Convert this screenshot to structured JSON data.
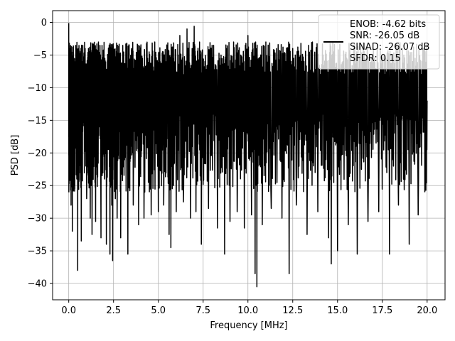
{
  "chart_data": {
    "type": "line",
    "xlabel": "Frequency [MHz]",
    "ylabel": "PSD [dB]",
    "xlim": [
      -0.9,
      21.0
    ],
    "ylim": [
      -42.5,
      1.8
    ],
    "xticks": [
      0.0,
      2.5,
      5.0,
      7.5,
      10.0,
      12.5,
      15.0,
      17.5,
      20.0
    ],
    "xtick_labels": [
      "0.0",
      "2.5",
      "5.0",
      "7.5",
      "10.0",
      "12.5",
      "15.0",
      "17.5",
      "20.0"
    ],
    "yticks": [
      0,
      -5,
      -10,
      -15,
      -20,
      -25,
      -30,
      -35,
      -40
    ],
    "ytick_labels": [
      "0",
      "−5",
      "−10",
      "−15",
      "−20",
      "−25",
      "−30",
      "−35",
      "−40"
    ],
    "grid": true,
    "series": [
      {
        "color": "#000000",
        "x_range": [
          0.0,
          20.0
        ],
        "points": [
          [
            0.0,
            -0.1
          ],
          [
            0.02,
            -23.0
          ],
          [
            0.05,
            -4.0
          ],
          [
            0.08,
            -12.0
          ],
          [
            0.1,
            -6.5
          ],
          [
            0.13,
            -28.0
          ],
          [
            0.16,
            -8.0
          ],
          [
            0.2,
            -32.0
          ],
          [
            0.25,
            -10.0
          ],
          [
            0.3,
            -25.0
          ],
          [
            0.35,
            -8.5
          ],
          [
            0.45,
            -24.0
          ],
          [
            0.5,
            -38.0
          ],
          [
            0.55,
            -12.0
          ],
          [
            0.6,
            -5.5
          ],
          [
            0.7,
            -33.5
          ],
          [
            0.8,
            -8.0
          ],
          [
            1.0,
            -27.0
          ],
          [
            1.1,
            -4.0
          ],
          [
            1.2,
            -30.0
          ],
          [
            1.3,
            -32.5
          ],
          [
            1.4,
            -7.0
          ],
          [
            1.5,
            -30.5
          ],
          [
            1.6,
            -10.0
          ],
          [
            1.8,
            -33.0
          ],
          [
            1.9,
            -8.0
          ],
          [
            2.0,
            -24.0
          ],
          [
            2.1,
            -34.0
          ],
          [
            2.2,
            -6.0
          ],
          [
            2.3,
            -35.5
          ],
          [
            2.35,
            -5.0
          ],
          [
            2.4,
            -28.0
          ],
          [
            2.45,
            -36.5
          ],
          [
            2.5,
            -7.5
          ],
          [
            2.6,
            -27.0
          ],
          [
            2.7,
            -30.0
          ],
          [
            2.8,
            -4.5
          ],
          [
            2.9,
            -33.0
          ],
          [
            3.1,
            -8.0
          ],
          [
            3.3,
            -35.5
          ],
          [
            3.4,
            -9.0
          ],
          [
            3.5,
            -4.0
          ],
          [
            3.6,
            -28.0
          ],
          [
            3.8,
            -6.5
          ],
          [
            3.9,
            -31.0
          ],
          [
            4.0,
            -6.0
          ],
          [
            4.2,
            -30.0
          ],
          [
            4.4,
            -5.5
          ],
          [
            4.6,
            -29.5
          ],
          [
            4.8,
            -3.0
          ],
          [
            5.0,
            -29.0
          ],
          [
            5.1,
            -6.0
          ],
          [
            5.3,
            -28.0
          ],
          [
            5.5,
            -4.0
          ],
          [
            5.6,
            -32.5
          ],
          [
            5.7,
            -34.5
          ],
          [
            5.8,
            -7.0
          ],
          [
            6.0,
            -29.0
          ],
          [
            6.2,
            -2.0
          ],
          [
            6.4,
            -27.5
          ],
          [
            6.6,
            -1.0
          ],
          [
            6.8,
            -30.0
          ],
          [
            7.0,
            -0.6
          ],
          [
            7.1,
            -29.0
          ],
          [
            7.3,
            -3.0
          ],
          [
            7.4,
            -34.0
          ],
          [
            7.6,
            -6.0
          ],
          [
            7.8,
            -28.5
          ],
          [
            8.0,
            -3.5
          ],
          [
            8.3,
            -31.5
          ],
          [
            8.5,
            -5.0
          ],
          [
            8.7,
            -35.5
          ],
          [
            8.8,
            -4.0
          ],
          [
            9.0,
            -30.5
          ],
          [
            9.2,
            -3.0
          ],
          [
            9.4,
            -29.0
          ],
          [
            9.6,
            -5.0
          ],
          [
            9.8,
            -31.5
          ],
          [
            10.0,
            -2.0
          ],
          [
            10.2,
            -29.5
          ],
          [
            10.3,
            -6.0
          ],
          [
            10.4,
            -38.5
          ],
          [
            10.5,
            -40.5
          ],
          [
            10.6,
            -5.5
          ],
          [
            10.8,
            -31.0
          ],
          [
            11.0,
            -3.0
          ],
          [
            11.3,
            -28.5
          ],
          [
            11.6,
            -4.0
          ],
          [
            11.9,
            -30.0
          ],
          [
            12.1,
            -6.0
          ],
          [
            12.3,
            -38.5
          ],
          [
            12.5,
            -4.0
          ],
          [
            12.7,
            -28.0
          ],
          [
            13.0,
            -6.0
          ],
          [
            13.3,
            -32.5
          ],
          [
            13.6,
            -3.0
          ],
          [
            13.9,
            -29.0
          ],
          [
            14.2,
            -5.0
          ],
          [
            14.5,
            -33.0
          ],
          [
            14.65,
            -37.0
          ],
          [
            14.8,
            -4.5
          ],
          [
            15.0,
            -35.0
          ],
          [
            15.3,
            -6.0
          ],
          [
            15.6,
            -31.0
          ],
          [
            15.9,
            -3.5
          ],
          [
            16.1,
            -35.5
          ],
          [
            16.4,
            -6.0
          ],
          [
            16.7,
            -30.5
          ],
          [
            17.0,
            -4.0
          ],
          [
            17.3,
            -29.0
          ],
          [
            17.6,
            -5.0
          ],
          [
            17.9,
            -35.5
          ],
          [
            18.1,
            -7.0
          ],
          [
            18.4,
            -28.0
          ],
          [
            18.7,
            -5.0
          ],
          [
            19.0,
            -34.0
          ],
          [
            19.2,
            -6.0
          ],
          [
            19.5,
            -29.5
          ],
          [
            19.8,
            -4.0
          ],
          [
            20.0,
            -12.0
          ]
        ]
      }
    ],
    "legend": {
      "placement": "upper-right",
      "entries": [
        "ENOB: -4.62 bits",
        "SNR: -26.05 dB",
        "SINAD: -26.07 dB",
        "SFDR: 0.15"
      ]
    }
  }
}
